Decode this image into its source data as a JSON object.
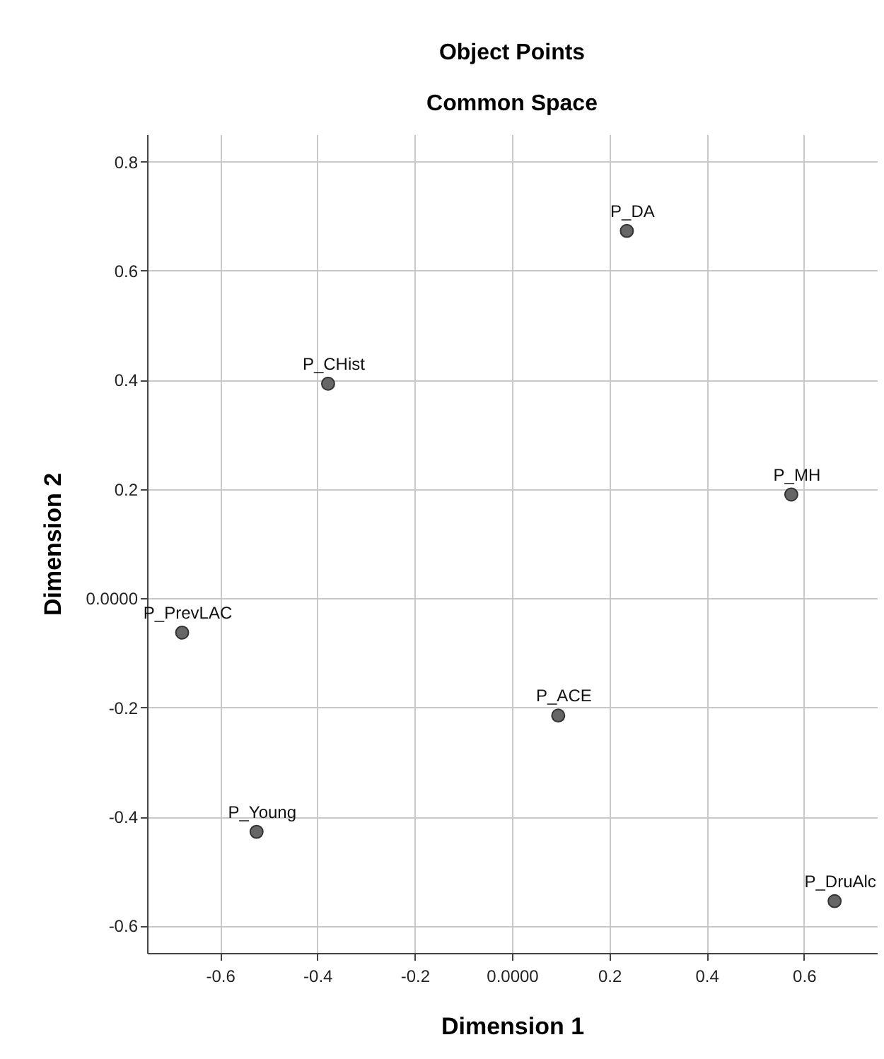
{
  "chart_data": {
    "type": "scatter",
    "title": "Object Points",
    "subtitle": "Common Space",
    "xlabel": "Dimension 1",
    "ylabel": "Dimension 2",
    "x": [
      -0.378,
      0.236,
      0.574,
      -0.678,
      -0.525,
      0.095,
      0.663
    ],
    "series": [
      {
        "color": "#666666",
        "values": [
          0.393,
          0.673,
          0.19,
          -0.063,
          -0.428,
          -0.215,
          -0.555
        ]
      }
    ],
    "annotations": [
      {
        "text": "P_CHist",
        "x": -0.378,
        "y": 0.393
      },
      {
        "text": "P_DA",
        "x": 0.236,
        "y": 0.673
      },
      {
        "text": "P_MH",
        "x": 0.574,
        "y": 0.19
      },
      {
        "text": "P_PrevLAC",
        "x": -0.678,
        "y": -0.063
      },
      {
        "text": "P_Young",
        "x": -0.525,
        "y": -0.428
      },
      {
        "text": "P_ACE",
        "x": 0.095,
        "y": -0.215
      },
      {
        "text": "P_DruAlc",
        "x": 0.663,
        "y": -0.555
      }
    ],
    "xlim": [
      -0.75,
      0.75
    ],
    "ylim": [
      -0.65,
      0.85
    ],
    "xticks": [
      -0.6,
      -0.4,
      -0.2,
      {
        "value": 0,
        "label": "0.0000"
      },
      0.2,
      0.4,
      0.6
    ],
    "yticks": [
      -0.6,
      -0.4,
      -0.2,
      {
        "value": 0,
        "label": "0.0000"
      },
      0.2,
      0.4,
      0.6,
      0.8
    ],
    "grid": true,
    "marker": "circle"
  }
}
